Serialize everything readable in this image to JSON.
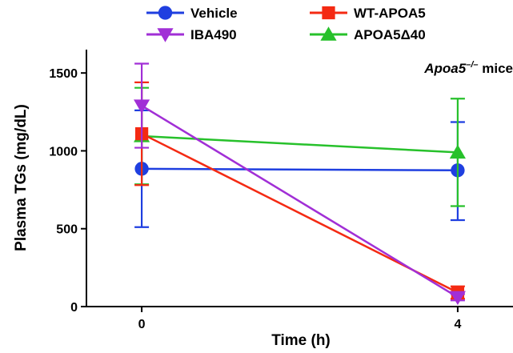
{
  "chart_data": {
    "type": "line",
    "xlabel": "Time (h)",
    "ylabel": "Plasma TGs (mg/dL)",
    "x": [
      0,
      4
    ],
    "xticks": [
      0,
      4
    ],
    "xlim": [
      -0.7,
      4.7
    ],
    "yticks": [
      0,
      500,
      1000,
      1500
    ],
    "ylim": [
      0,
      1650
    ],
    "grid": false,
    "legend_position": "top",
    "annotation": {
      "italic": "Apoa5",
      "sup": "–/–",
      "rest": " mice"
    },
    "series": [
      {
        "name": "Vehicle",
        "color": "#1f3fe0",
        "marker": "circle",
        "values": [
          885,
          875
        ],
        "err_low": [
          375,
          320
        ],
        "err_high": [
          375,
          310
        ]
      },
      {
        "name": "IBA490",
        "color": "#a12fd6",
        "marker": "triangle-down",
        "values": [
          1290,
          60
        ],
        "err_low": [
          270,
          20
        ],
        "err_high": [
          270,
          20
        ]
      },
      {
        "name": "WT-APOA5",
        "color": "#f42a13",
        "marker": "square",
        "values": [
          1110,
          90
        ],
        "err_low": [
          330,
          40
        ],
        "err_high": [
          330,
          40
        ]
      },
      {
        "name": "APOA5Δ40",
        "color": "#27c12b",
        "marker": "triangle-up",
        "values": [
          1095,
          990
        ],
        "err_low": [
          310,
          345
        ],
        "err_high": [
          310,
          345
        ]
      }
    ]
  }
}
